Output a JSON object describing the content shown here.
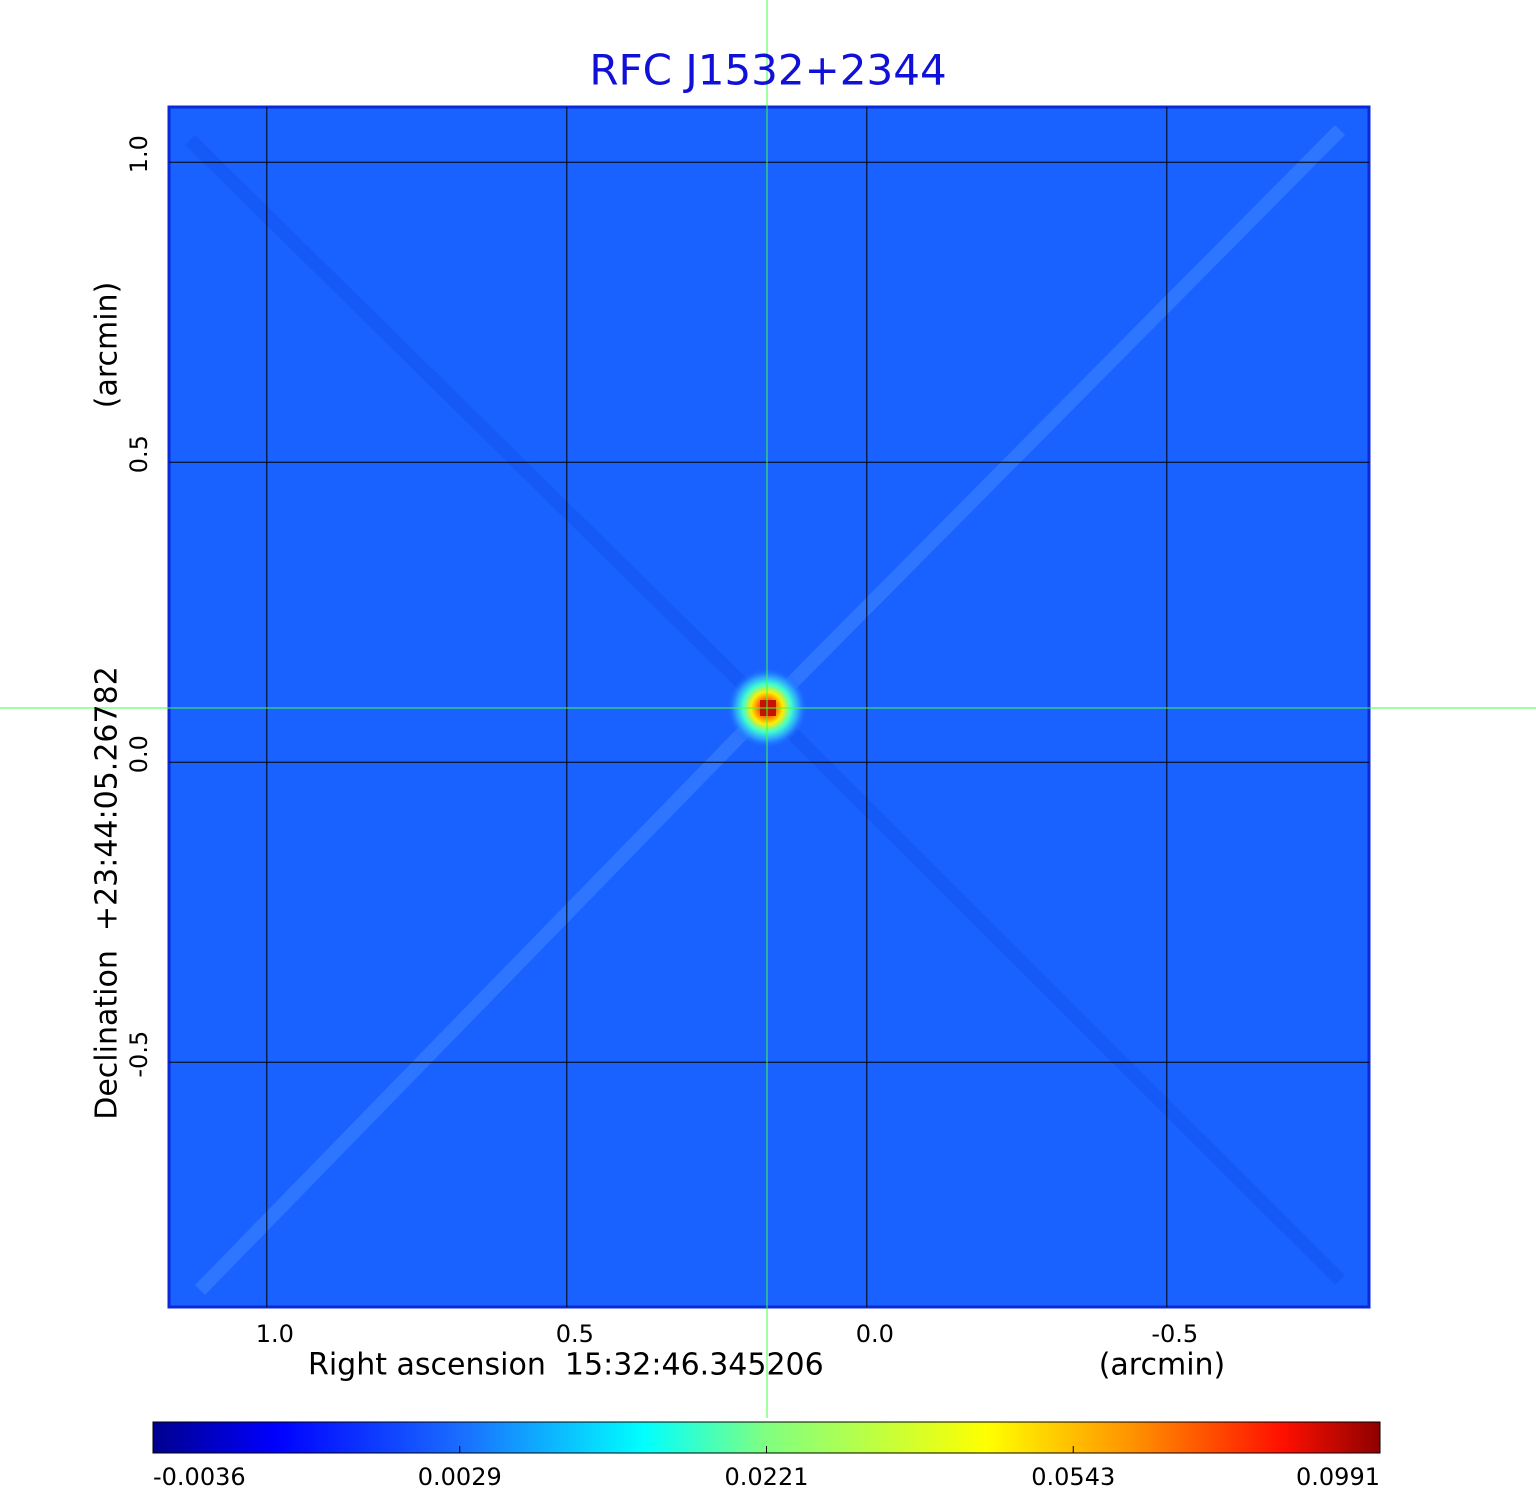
{
  "chart_data": {
    "type": "image",
    "title": "RFC J1532+2344",
    "x_label": "Right ascension  15:32:46.345206",
    "x_unit": "(arcmin)",
    "y_label": "Declination  +23:44:05.26782",
    "y_unit": "(arcmin)",
    "xlim": [
      1.163,
      -0.837
    ],
    "ylim": [
      -0.908,
      1.092
    ],
    "xticks": [
      {
        "value": 1,
        "label": "1.0"
      },
      0.5,
      {
        "value": 0,
        "label": "0.0"
      },
      -0.5
    ],
    "yticks": [
      {
        "value": 1,
        "label": "1.0"
      },
      0.5,
      {
        "value": 0,
        "label": "0.0"
      },
      -0.5
    ],
    "grid": true,
    "colorbar": {
      "ticks": [
        -0.0036,
        0.0029,
        0.0221,
        0.0543,
        0.0991
      ]
    }
  }
}
